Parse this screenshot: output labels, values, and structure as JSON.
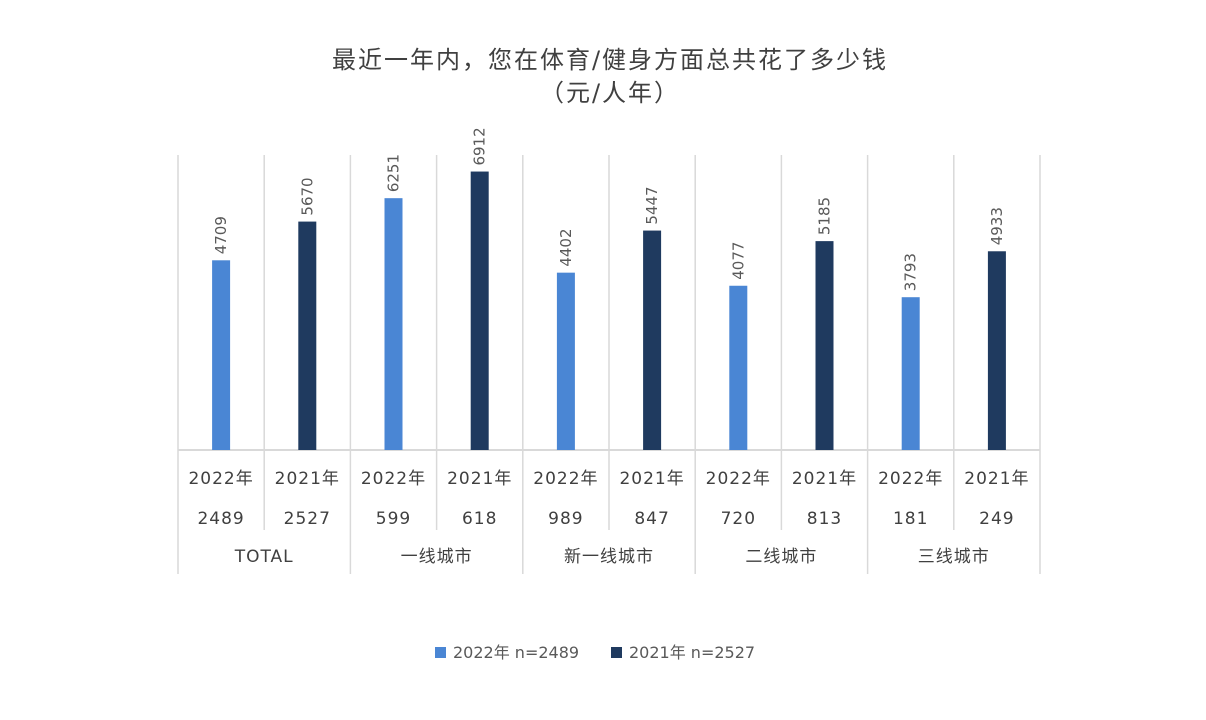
{
  "chart_data": {
    "type": "bar",
    "title": "最近一年内，您在体育/健身方面总共花了多少钱",
    "subtitle": "（元/人年）",
    "groups": [
      {
        "label": "TOTAL",
        "bars": [
          {
            "year": "2022年",
            "n": "2489",
            "value": 4709,
            "series": 0
          },
          {
            "year": "2021年",
            "n": "2527",
            "value": 5670,
            "series": 1
          }
        ]
      },
      {
        "label": "一线城市",
        "bars": [
          {
            "year": "2022年",
            "n": "599",
            "value": 6251,
            "series": 0
          },
          {
            "year": "2021年",
            "n": "618",
            "value": 6912,
            "series": 1
          }
        ]
      },
      {
        "label": "新一线城市",
        "bars": [
          {
            "year": "2022年",
            "n": "989",
            "value": 4402,
            "series": 0
          },
          {
            "year": "2021年",
            "n": "847",
            "value": 5447,
            "series": 1
          }
        ]
      },
      {
        "label": "二线城市",
        "bars": [
          {
            "year": "2022年",
            "n": "720",
            "value": 4077,
            "series": 0
          },
          {
            "year": "2021年",
            "n": "813",
            "value": 5185,
            "series": 1
          }
        ]
      },
      {
        "label": "三线城市",
        "bars": [
          {
            "year": "2022年",
            "n": "181",
            "value": 3793,
            "series": 0
          },
          {
            "year": "2021年",
            "n": "249",
            "value": 4933,
            "series": 1
          }
        ]
      }
    ],
    "series": [
      {
        "name": "2022年 n=2489",
        "color": "#4a86d4"
      },
      {
        "name": "2021年 n=2527",
        "color": "#1f3a5f"
      }
    ],
    "ylim": [
      0,
      7000
    ],
    "grid": false,
    "legend_position": "bottom"
  }
}
